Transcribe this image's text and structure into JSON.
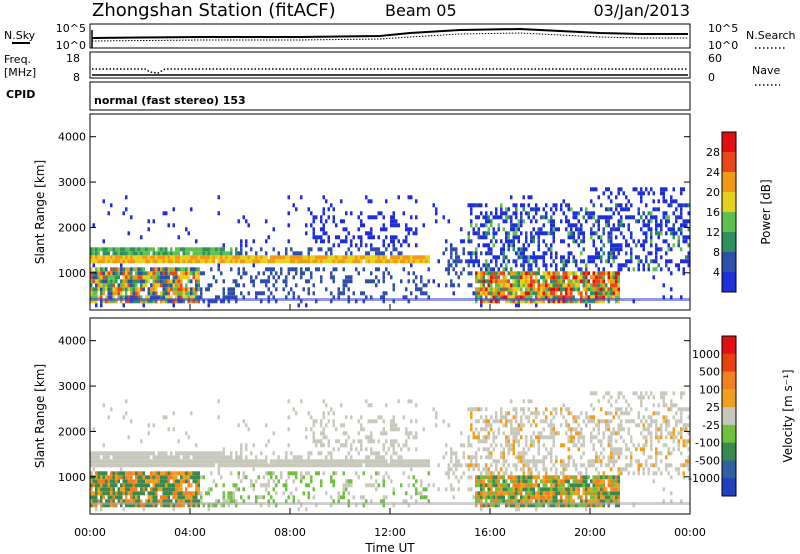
{
  "header": {
    "title": "Zhongshan Station (fitACF)",
    "beam": "Beam 05",
    "date": "03/Jan/2013"
  },
  "strip_labels": {
    "nsky": "N.Sky",
    "nsky_ticks": [
      "10^5",
      "10^0"
    ],
    "nsearch": "N.Search",
    "nsearch_ticks": [
      "10^5",
      "10^0"
    ],
    "freq_line1": "Freq.",
    "freq_line2": "[MHz]",
    "freq_ticks": [
      "18",
      "8"
    ],
    "nave": "Nave",
    "nave_ticks": [
      "60",
      "0"
    ],
    "cpid": "CPID",
    "cpid_text": "normal (fast stereo) 153"
  },
  "chart_data": [
    {
      "type": "heatmap",
      "name": "power-panel",
      "ylabel": "Slant Range [km]",
      "ylim": [
        180,
        4500
      ],
      "yticks": [
        "1000",
        "2000",
        "3000",
        "4000"
      ],
      "xlabel": "",
      "xlim": [
        "00:00",
        "24:00"
      ],
      "colorbar": {
        "label": "Power [dB]",
        "ticks": [
          "4",
          "8",
          "12",
          "16",
          "20",
          "24",
          "28"
        ],
        "colors": [
          "#1f2fd8",
          "#2f4fa8",
          "#2f8f5f",
          "#5fc04f",
          "#e8d020",
          "#f09a18",
          "#e84818",
          "#e01010"
        ]
      },
      "regions": [
        {
          "t": [
            0.2,
            5.6
          ],
          "r": [
            1380,
            1560
          ],
          "level": "low-mid"
        },
        {
          "t": [
            0.2,
            13.5
          ],
          "r": [
            1150,
            1300
          ],
          "level": "mid-high"
        },
        {
          "t": [
            0.2,
            4.2
          ],
          "r": [
            350,
            1100
          ],
          "level": "high"
        },
        {
          "t": [
            15.2,
            24
          ],
          "r": [
            900,
            2500
          ],
          "level": "low"
        },
        {
          "t": [
            15.5,
            21.0
          ],
          "r": [
            350,
            900
          ],
          "level": "high"
        }
      ]
    },
    {
      "type": "heatmap",
      "name": "velocity-panel",
      "ylabel": "Slant Range [km]",
      "ylim": [
        180,
        4500
      ],
      "yticks": [
        "1000",
        "2000",
        "3000",
        "4000"
      ],
      "xlabel": "Time UT",
      "xticks": [
        "00:00",
        "04:00",
        "08:00",
        "12:00",
        "16:00",
        "20:00",
        "00:00"
      ],
      "colorbar": {
        "label": "Velocity [m s⁻¹]",
        "ticks": [
          "1000",
          "500",
          "100",
          "25",
          "-25",
          "-100",
          "-500",
          "-1000"
        ],
        "colors": [
          "#2040c0",
          "#3060a0",
          "#3a8a50",
          "#70c040",
          "#c8c8bc",
          "#f0a020",
          "#f08020",
          "#e84010",
          "#e01010"
        ]
      }
    }
  ]
}
